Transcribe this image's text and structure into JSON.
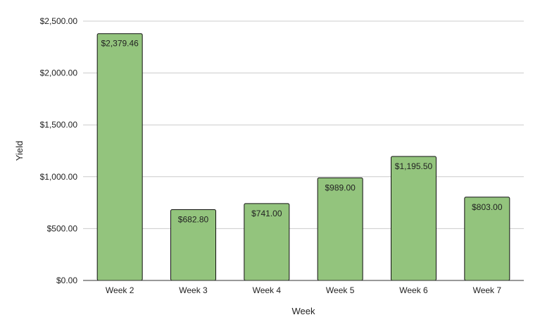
{
  "chart_data": {
    "type": "bar",
    "title": "",
    "xlabel": "Week",
    "ylabel": "Yield",
    "categories": [
      "Week 2",
      "Week 3",
      "Week 4",
      "Week 5",
      "Week 6",
      "Week 7"
    ],
    "values": [
      2379.46,
      682.8,
      741.0,
      989.0,
      1195.5,
      803.0
    ],
    "data_labels": [
      "$2,379.46",
      "$682.80",
      "$741.00",
      "$989.00",
      "$1,195.50",
      "$803.00"
    ],
    "ylim": [
      0,
      2500
    ],
    "yticks": [
      0,
      500,
      1000,
      1500,
      2000,
      2500
    ],
    "ytick_labels": [
      "$0.00",
      "$500.00",
      "$1,000.00",
      "$1,500.00",
      "$2,000.00",
      "$2,500.00"
    ],
    "grid": true,
    "legend": "none",
    "colors": {
      "bar_fill": "#93c47d",
      "bar_stroke": "#111111",
      "grid": "#cccccc",
      "axis": "#333333"
    }
  }
}
